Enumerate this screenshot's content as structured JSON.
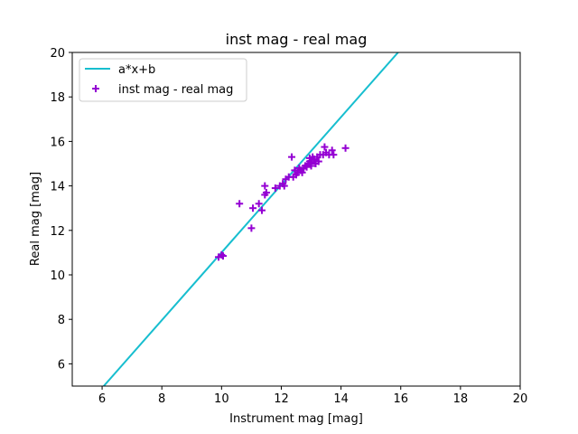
{
  "chart_data": {
    "type": "scatter",
    "title": "inst mag - real mag",
    "xlabel": "Instrument mag [mag]",
    "ylabel": "Real mag [mag]",
    "xlim": [
      5,
      20
    ],
    "ylim": [
      5,
      20
    ],
    "xticks": [
      6,
      8,
      10,
      12,
      14,
      16,
      18,
      20
    ],
    "yticks": [
      6,
      8,
      10,
      12,
      14,
      16,
      18,
      20
    ],
    "grid": false,
    "legend_position": "top-left",
    "fit_line": {
      "name": "a*x+b",
      "color": "#17becf",
      "slope": 1.522,
      "intercept": -4.214
    },
    "series": [
      {
        "name": "inst mag - real mag",
        "color": "#9400d3",
        "marker": "+",
        "points": [
          [
            9.9,
            10.8
          ],
          [
            10.0,
            10.9
          ],
          [
            10.05,
            10.85
          ],
          [
            10.6,
            13.2
          ],
          [
            11.0,
            12.1
          ],
          [
            11.05,
            13.0
          ],
          [
            11.25,
            13.2
          ],
          [
            11.35,
            12.9
          ],
          [
            11.45,
            13.6
          ],
          [
            11.45,
            14.0
          ],
          [
            11.5,
            13.7
          ],
          [
            11.8,
            13.9
          ],
          [
            11.95,
            14.0
          ],
          [
            12.05,
            14.1
          ],
          [
            12.1,
            14.0
          ],
          [
            12.15,
            14.3
          ],
          [
            12.25,
            14.4
          ],
          [
            12.35,
            15.3
          ],
          [
            12.4,
            14.4
          ],
          [
            12.45,
            14.7
          ],
          [
            12.5,
            14.5
          ],
          [
            12.55,
            14.6
          ],
          [
            12.6,
            14.8
          ],
          [
            12.65,
            14.7
          ],
          [
            12.7,
            14.6
          ],
          [
            12.75,
            14.8
          ],
          [
            12.8,
            14.9
          ],
          [
            12.85,
            14.85
          ],
          [
            12.9,
            15.0
          ],
          [
            12.95,
            15.1
          ],
          [
            13.0,
            14.9
          ],
          [
            13.05,
            15.3
          ],
          [
            13.1,
            15.2
          ],
          [
            13.15,
            15.0
          ],
          [
            13.2,
            15.3
          ],
          [
            13.25,
            15.1
          ],
          [
            13.3,
            15.4
          ],
          [
            13.4,
            15.4
          ],
          [
            13.45,
            15.75
          ],
          [
            13.5,
            15.5
          ],
          [
            13.6,
            15.4
          ],
          [
            13.7,
            15.6
          ],
          [
            13.75,
            15.4
          ],
          [
            14.15,
            15.7
          ],
          [
            12.95,
            15.25
          ],
          [
            13.0,
            15.05
          ]
        ]
      }
    ]
  }
}
